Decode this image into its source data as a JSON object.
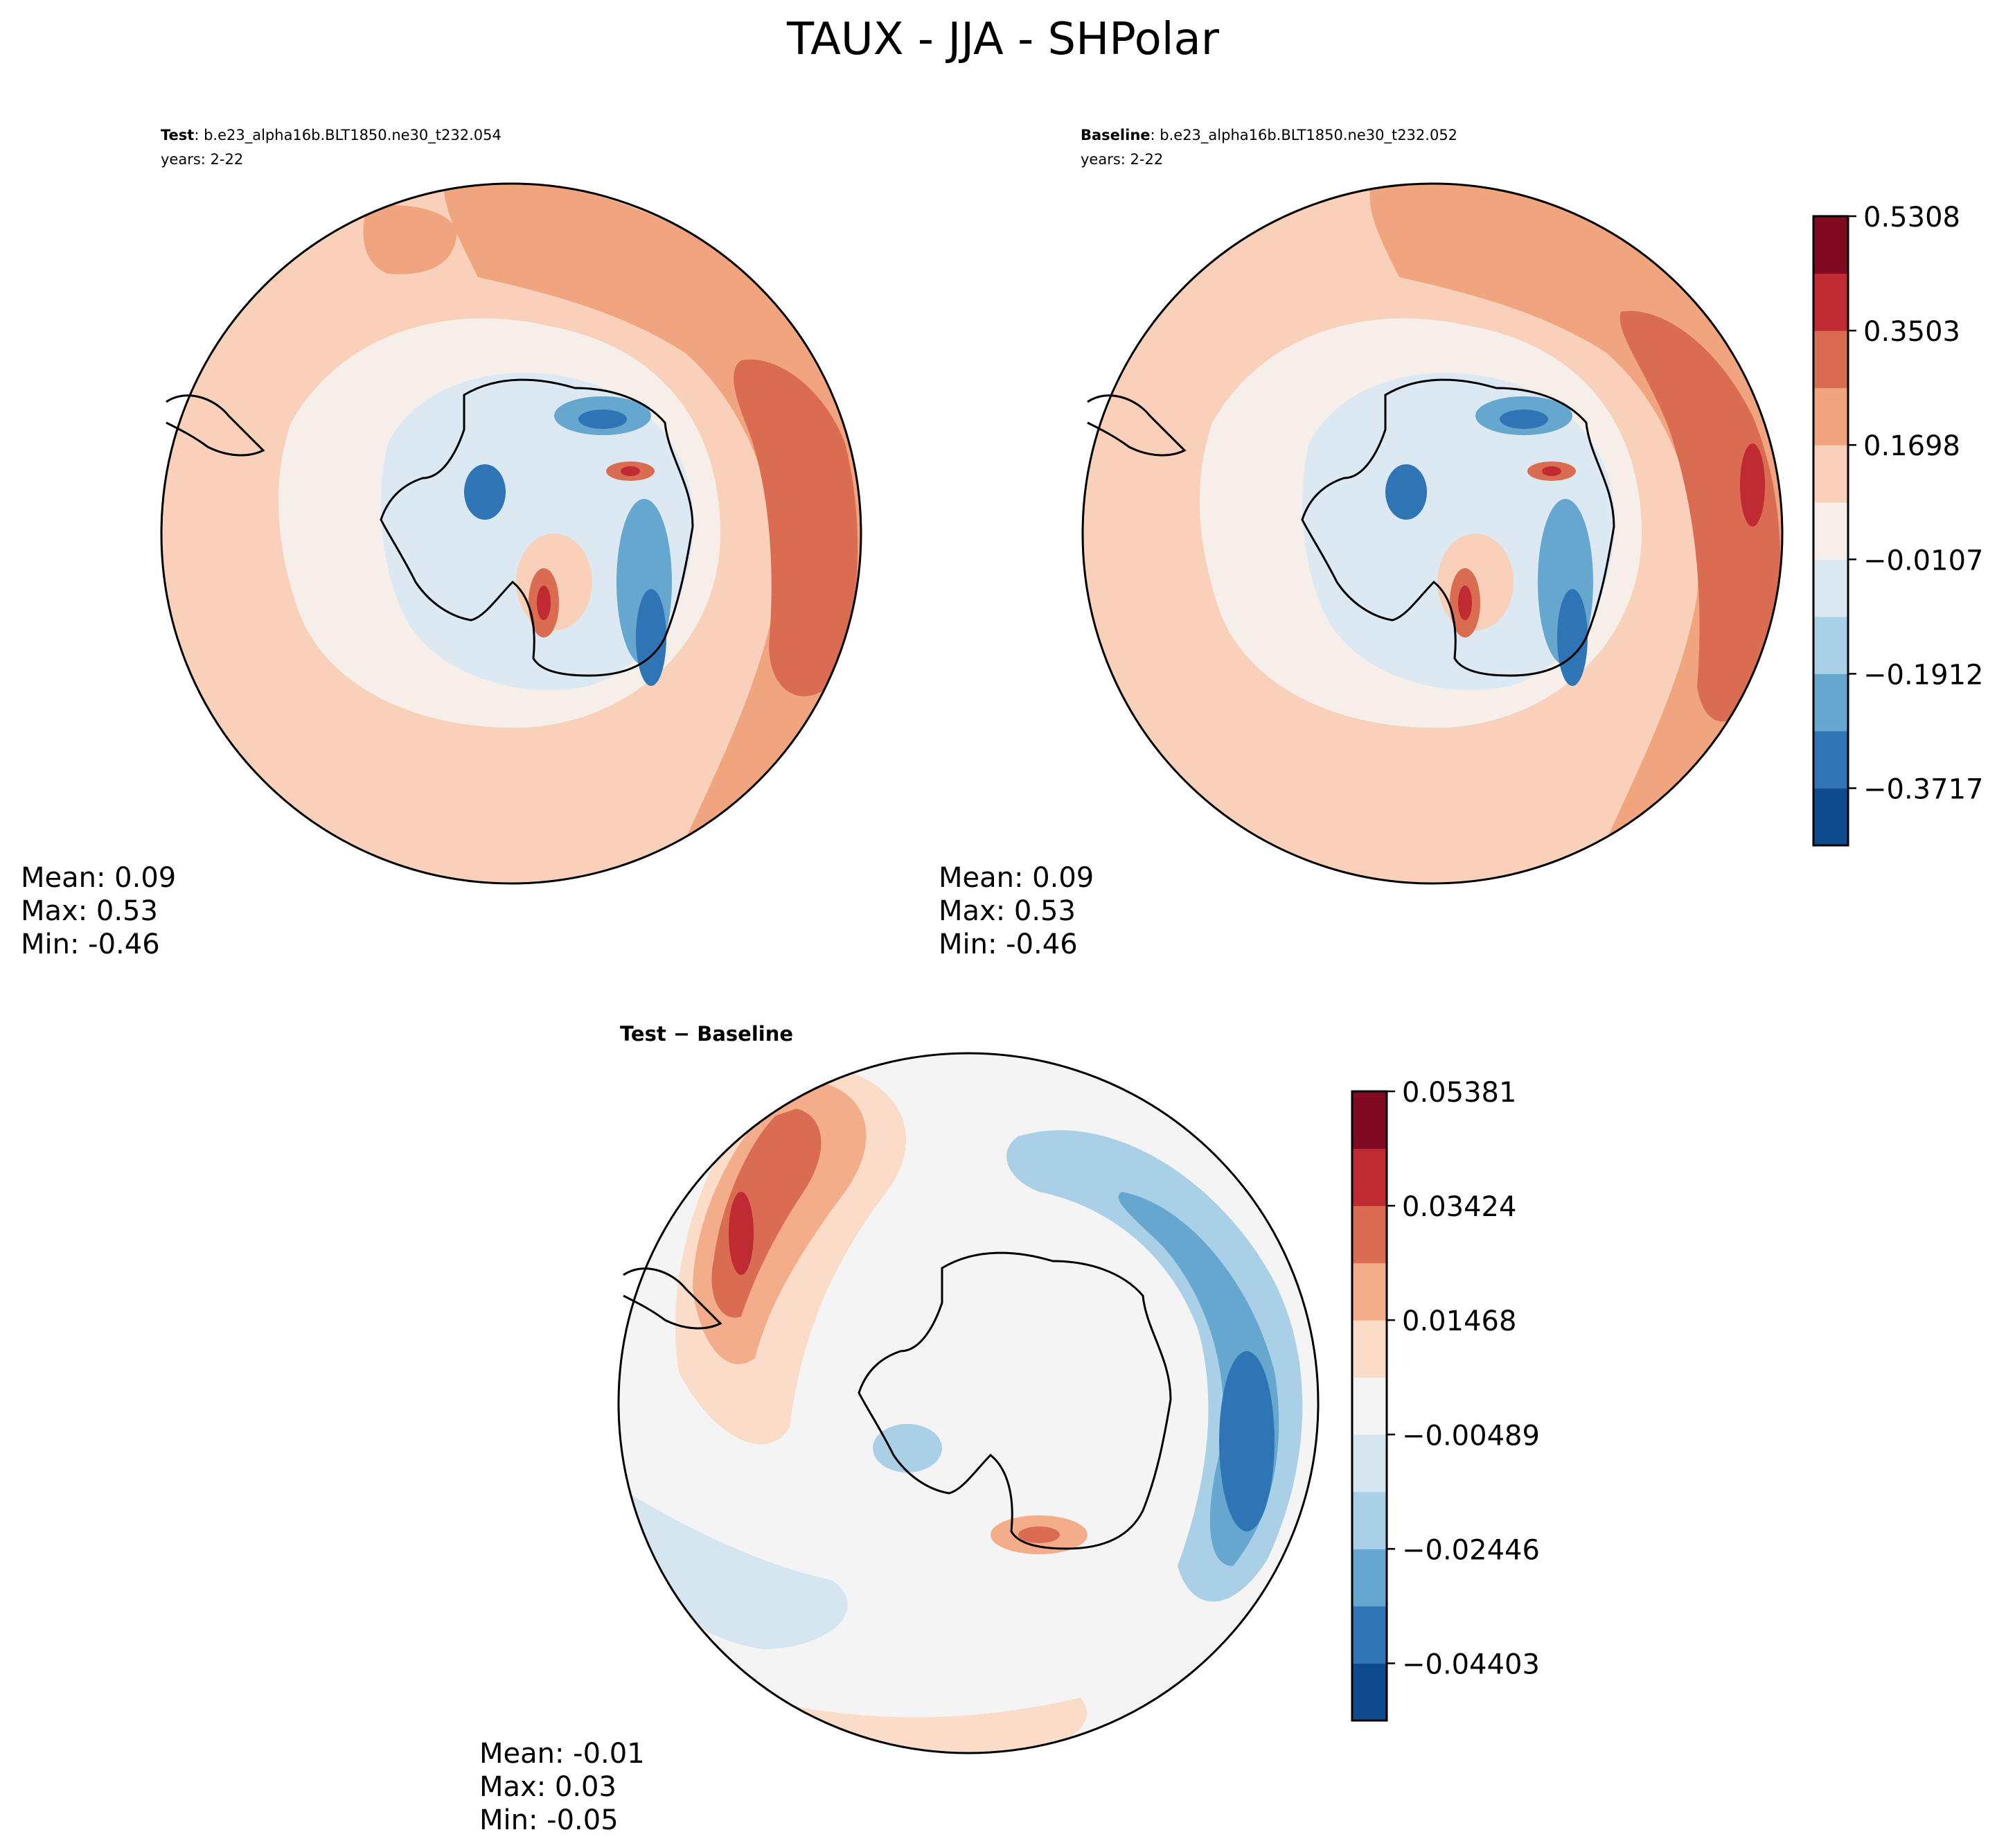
{
  "chart_data": {
    "type": "contour-map",
    "suptitle": "TAUX - JJA - SHPolar",
    "panels": [
      {
        "id": "test",
        "title_bold": "Test",
        "title_rest": ": b.e23_alpha16b.BLT1850.ne30_t232.054",
        "years": "years: 2-22",
        "stats": [
          "Mean:  0.09",
          "Max:  0.53",
          "Min: -0.46"
        ],
        "stat_values": {
          "mean": 0.09,
          "max": 0.53,
          "min": -0.46
        }
      },
      {
        "id": "baseline",
        "title_bold": "Baseline",
        "title_rest": ": b.e23_alpha16b.BLT1850.ne30_t232.052",
        "years": "years: 2-22",
        "stats": [
          "Mean:  0.09",
          "Max:  0.53",
          "Min: -0.46"
        ],
        "stat_values": {
          "mean": 0.09,
          "max": 0.53,
          "min": -0.46
        }
      },
      {
        "id": "diff",
        "title_bold": "Test − Baseline",
        "title_rest": "",
        "years": "",
        "stats": [
          "Mean: -0.01",
          "Max:  0.03",
          "Min: -0.05"
        ],
        "stat_values": {
          "mean": -0.01,
          "max": 0.03,
          "min": -0.05
        }
      }
    ],
    "colorbars": [
      {
        "id": "main",
        "range": [
          -0.4619,
          0.5308
        ],
        "levels": 11,
        "tick_values": [
          0.5308,
          0.3503,
          0.1698,
          -0.0107,
          -0.1912,
          -0.3717
        ],
        "tick_labels": [
          "0.5308",
          "0.3503",
          "0.1698",
          "−0.0107",
          "−0.1912",
          "−0.3717"
        ],
        "colors": [
          "#0f4b8c",
          "#2f75b6",
          "#66a7d0",
          "#a9d0e6",
          "#dce9f2",
          "#f6eee9",
          "#f9d0b9",
          "#f0a57e",
          "#da6c51",
          "#bf2a33",
          "#7f0a22"
        ]
      },
      {
        "id": "diff",
        "range": [
          -0.05381,
          0.05381
        ],
        "levels": 11,
        "tick_values": [
          0.05381,
          0.03424,
          0.01468,
          -0.00489,
          -0.02446,
          -0.04403
        ],
        "tick_labels": [
          "0.05381",
          "0.03424",
          "0.01468",
          "−0.00489",
          "−0.02446",
          "−0.04403"
        ],
        "colors": [
          "#0f4b8c",
          "#2f75b6",
          "#66a7d0",
          "#a9d0e6",
          "#d6e6f1",
          "#f4f4f4",
          "#fbdcc9",
          "#f4ad8a",
          "#da6c51",
          "#bf2a33",
          "#7f0a22"
        ]
      }
    ]
  }
}
